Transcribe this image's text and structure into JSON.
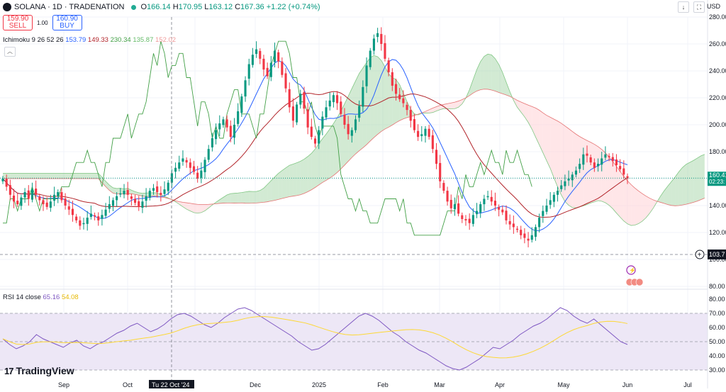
{
  "header": {
    "symbol_line": "SOLANA · 1D · TRADENATION",
    "ohlc": {
      "o_label": "O",
      "o": "166.14",
      "h_label": "H",
      "h": "170.95",
      "l_label": "L",
      "l": "163.12",
      "c_label": "C",
      "c": "167.36",
      "change": "+1.22 (+0.74%)"
    },
    "currency": "USD"
  },
  "trade": {
    "sell_price": "159.90",
    "sell_label": "SELL",
    "spread": "1.00",
    "buy_price": "160.90",
    "buy_label": "BUY"
  },
  "ichimoku": {
    "name": "Ichimoku",
    "params": "9 26 52 26",
    "v1": "153.79",
    "v2": "149.33",
    "v3": "230.34",
    "v4": "135.87",
    "v5": "152.02"
  },
  "rsi": {
    "name": "RSI",
    "params": "14 close",
    "v1": "65.16",
    "v2": "54.08"
  },
  "price_axis": {
    "ticks": [
      "280.00",
      "260.00",
      "240.00",
      "220.00",
      "200.00",
      "180.00",
      "160.00",
      "140.00",
      "120.00",
      "100.00",
      "80.00"
    ],
    "last_price": "160.41",
    "countdown": "02:23:",
    "crosshair_price": "103.7"
  },
  "rsi_axis": {
    "ticks": [
      "80.00",
      "70.00",
      "60.00",
      "50.00",
      "40.00",
      "30.00"
    ]
  },
  "time_axis": {
    "labels": [
      "Sep",
      "Oct",
      "Dec",
      "2025",
      "Feb",
      "Mar",
      "Apr",
      "May",
      "Jun",
      "Jul"
    ],
    "cursor_label": "Tu 22 Oct '24"
  },
  "branding": {
    "logo_text": "TradingView",
    "logo_mark": "17"
  },
  "colors": {
    "up": "#089981",
    "down": "#f23645",
    "conversion": "#2962ff",
    "base": "#b2242a",
    "lagging": "#43a047",
    "cloud_up": "#a5d6a7",
    "cloud_down": "#ffcdd2",
    "rsi": "#7e57c2",
    "rsi_ma": "#fdd835",
    "rsi_bg": "#ede7f6"
  },
  "chart_data": [
    {
      "type": "candlestick",
      "title": "SOLANA · 1D · TRADENATION",
      "x_labels": [
        "Sep",
        "Oct",
        "Dec",
        "2025",
        "Feb",
        "Mar",
        "Apr",
        "May",
        "Jun",
        "Jul"
      ],
      "ylim": [
        80,
        280
      ],
      "grid": true,
      "closes": [
        160,
        154,
        148,
        143,
        141,
        146,
        150,
        145,
        152,
        148,
        144,
        141,
        139,
        143,
        148,
        150,
        144,
        140,
        137,
        133,
        129,
        125,
        127,
        131,
        134,
        132,
        129,
        133,
        137,
        141,
        144,
        147,
        149,
        151,
        148,
        145,
        142,
        139,
        143,
        147,
        151,
        153,
        150,
        148,
        152,
        157,
        164,
        168,
        172,
        175,
        172,
        168,
        165,
        160,
        166,
        174,
        182,
        190,
        196,
        201,
        204,
        198,
        191,
        200,
        210,
        221,
        233,
        245,
        252,
        256,
        249,
        241,
        236,
        246,
        255,
        247,
        237,
        227,
        213,
        203,
        215,
        223,
        212,
        198,
        191,
        186,
        196,
        206,
        213,
        218,
        222,
        216,
        208,
        200,
        193,
        196,
        204,
        214,
        228,
        244,
        255,
        264,
        268,
        260,
        249,
        239,
        229,
        223,
        219,
        216,
        211,
        203,
        196,
        191,
        193,
        197,
        191,
        182,
        171,
        158,
        151,
        143,
        138,
        141,
        134,
        130,
        129,
        127,
        133,
        136,
        141,
        145,
        147,
        143,
        140,
        137,
        135,
        129,
        126,
        124,
        122,
        118,
        116,
        114,
        118,
        124,
        131,
        136,
        140,
        144,
        148,
        151,
        155,
        158,
        160,
        163,
        166,
        171,
        178,
        177,
        172,
        168,
        171,
        175,
        178,
        176,
        173,
        170,
        167,
        163,
        160
      ],
      "series": [
        {
          "name": "RSI",
          "values": [
            52,
            48,
            45,
            47,
            50,
            55,
            52,
            50,
            48,
            46,
            49,
            51,
            47,
            45,
            48,
            50,
            53,
            56,
            58,
            61,
            63,
            60,
            57,
            59,
            62,
            66,
            69,
            70,
            68,
            65,
            62,
            60,
            63,
            67,
            70,
            73,
            74,
            72,
            69,
            66,
            63,
            60,
            57,
            54,
            50,
            47,
            44,
            45,
            48,
            52,
            56,
            60,
            64,
            68,
            70,
            68,
            65,
            61,
            57,
            54,
            50,
            47,
            44,
            42,
            39,
            36,
            33,
            31,
            30,
            32,
            35,
            38,
            42,
            46,
            45,
            48,
            51,
            55,
            58,
            61,
            63,
            66,
            70,
            74,
            72,
            68,
            65,
            63,
            66,
            62,
            58,
            54,
            50,
            48
          ]
        }
      ]
    }
  ]
}
